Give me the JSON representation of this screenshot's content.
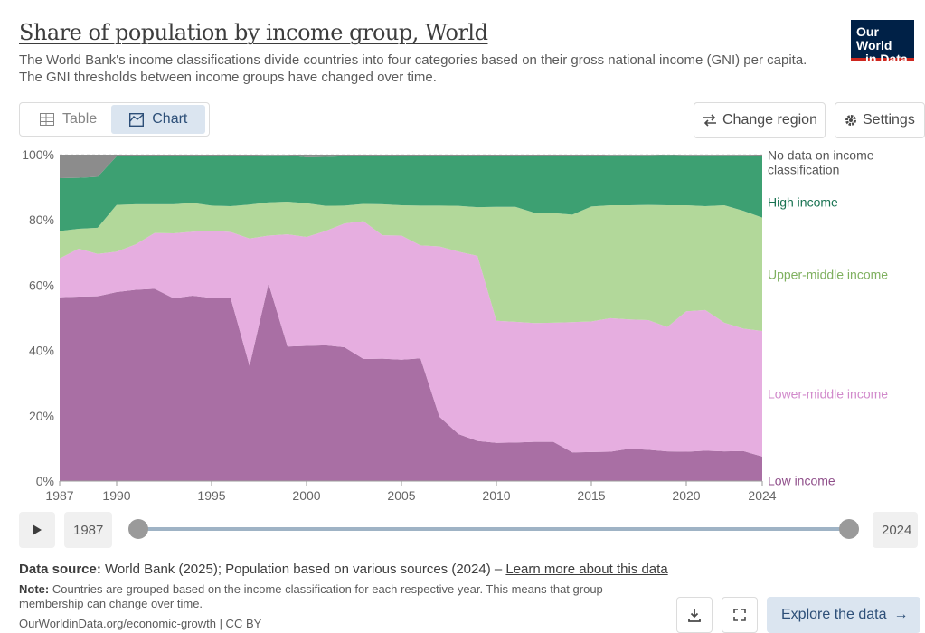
{
  "header": {
    "title": "Share of population by income group, World",
    "subtitle": "The World Bank's income classifications divide countries into four categories based on their gross national income (GNI) per capita. The GNI thresholds between income groups have changed over time.",
    "logo_line1": "Our World",
    "logo_line2": "in Data"
  },
  "tabs": {
    "table": "Table",
    "chart": "Chart"
  },
  "controls": {
    "change_region": "Change region",
    "settings": "Settings"
  },
  "timeline": {
    "start": "1987",
    "end": "2024"
  },
  "footer": {
    "source_label": "Data source:",
    "source_text": "World Bank (2025); Population based on various sources (2024) –",
    "source_link": "Learn more about this data",
    "note_label": "Note:",
    "note_text": "Countries are grouped based on the income classification for each respective year. This means that group membership can change over time.",
    "credit": "OurWorldinData.org/economic-growth | CC BY",
    "explore": "Explore the data"
  },
  "colors": {
    "low": "#a96fa4",
    "lower_middle": "#e6aee0",
    "upper_middle": "#b2d89a",
    "high": "#3da072",
    "nodata": "#8c8c8c",
    "leg_low": "#8f4e8a",
    "leg_lower_middle": "#d18acb",
    "leg_upper_middle": "#7fb05f",
    "leg_high": "#197352",
    "leg_nodata": "#555555"
  },
  "chart_data": {
    "type": "area",
    "stacked": true,
    "title": "Share of population by income group, World",
    "x": [
      1987,
      1988,
      1989,
      1990,
      1991,
      1992,
      1993,
      1994,
      1995,
      1996,
      1997,
      1998,
      1999,
      2000,
      2001,
      2002,
      2003,
      2004,
      2005,
      2006,
      2007,
      2008,
      2009,
      2010,
      2011,
      2012,
      2013,
      2014,
      2015,
      2016,
      2017,
      2018,
      2019,
      2020,
      2021,
      2022,
      2023,
      2024
    ],
    "xticks": [
      1987,
      1990,
      1995,
      2000,
      2005,
      2010,
      2015,
      2020,
      2024
    ],
    "ylim": [
      0,
      100
    ],
    "yticks": [
      0,
      20,
      40,
      60,
      80,
      100
    ],
    "ytick_labels": [
      "0%",
      "20%",
      "40%",
      "60%",
      "80%",
      "100%"
    ],
    "series": [
      {
        "name": "Low income",
        "key": "low",
        "values": [
          56.3,
          56.5,
          56.6,
          57.9,
          58.6,
          58.9,
          56.0,
          56.8,
          56.1,
          56.2,
          35.3,
          60.5,
          41.2,
          41.4,
          41.6,
          41.0,
          37.4,
          37.5,
          37.2,
          37.6,
          19.7,
          14.4,
          12.3,
          11.7,
          11.8,
          12.0,
          12.0,
          8.8,
          8.9,
          9.0,
          9.9,
          9.6,
          9.1,
          9.0,
          9.3,
          9.1,
          9.2,
          7.5
        ]
      },
      {
        "name": "Lower-middle income",
        "key": "lower_middle",
        "values": [
          11.9,
          14.7,
          13.0,
          12.4,
          13.9,
          17.1,
          19.9,
          19.6,
          20.6,
          20.1,
          39.0,
          14.7,
          34.4,
          33.4,
          35.0,
          37.9,
          42.2,
          37.8,
          38.0,
          34.6,
          52.2,
          55.9,
          56.7,
          37.4,
          37.0,
          36.4,
          36.5,
          39.9,
          40.0,
          40.9,
          39.6,
          39.7,
          38.1,
          43.0,
          43.1,
          39.4,
          37.5,
          38.5
        ]
      },
      {
        "name": "Upper-middle income",
        "key": "upper_middle",
        "values": [
          8.4,
          6.1,
          8.0,
          14.3,
          12.3,
          8.8,
          8.9,
          8.8,
          7.7,
          7.9,
          10.4,
          10.2,
          10.0,
          10.3,
          7.7,
          5.5,
          5.3,
          9.5,
          9.3,
          12.2,
          12.5,
          14.0,
          14.9,
          34.9,
          35.2,
          33.8,
          33.6,
          32.9,
          35.2,
          34.6,
          35.0,
          35.3,
          37.3,
          32.5,
          31.8,
          36.0,
          36.1,
          34.7
        ]
      },
      {
        "name": "High income",
        "key": "high",
        "values": [
          16.2,
          15.6,
          15.6,
          14.9,
          14.7,
          14.7,
          14.7,
          14.4,
          15.2,
          15.4,
          15.0,
          14.4,
          14.2,
          14.1,
          15.0,
          15.1,
          14.7,
          14.8,
          15.0,
          15.2,
          15.2,
          15.3,
          15.7,
          15.6,
          15.6,
          17.4,
          17.5,
          18.0,
          15.5,
          15.3,
          15.3,
          15.2,
          15.4,
          15.3,
          15.6,
          15.3,
          17.0,
          19.0
        ]
      },
      {
        "name": "No data on income classification",
        "key": "nodata",
        "values": [
          7.2,
          7.1,
          6.8,
          0.5,
          0.5,
          0.5,
          0.5,
          0.4,
          0.4,
          0.4,
          0.3,
          0.2,
          0.2,
          0.8,
          0.7,
          0.5,
          0.4,
          0.4,
          0.5,
          0.4,
          0.4,
          0.4,
          0.4,
          0.4,
          0.4,
          0.4,
          0.4,
          0.4,
          0.4,
          0.2,
          0.2,
          0.2,
          0.1,
          0.2,
          0.2,
          0.2,
          0.2,
          0.3
        ]
      }
    ],
    "legend": [
      {
        "key": "nodata",
        "label_line1": "No data on income",
        "label_line2": "classification"
      },
      {
        "key": "high",
        "label_line1": "High income",
        "label_line2": ""
      },
      {
        "key": "upper_middle",
        "label_line1": "Upper-middle income",
        "label_line2": ""
      },
      {
        "key": "lower_middle",
        "label_line1": "Lower-middle income",
        "label_line2": ""
      },
      {
        "key": "low",
        "label_line1": "Low income",
        "label_line2": ""
      }
    ]
  }
}
